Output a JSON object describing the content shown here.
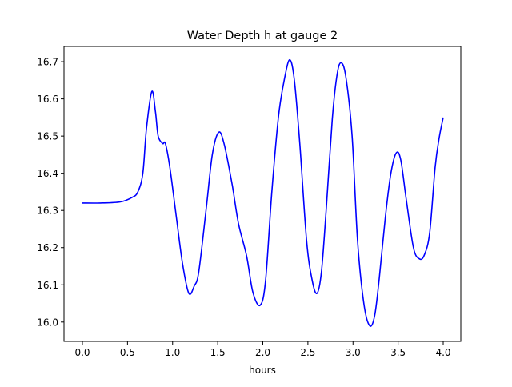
{
  "chart_data": {
    "type": "line",
    "title": "Water Depth h at gauge 2",
    "xlabel": "hours",
    "ylabel": "",
    "xlim": [
      -0.204,
      4.195
    ],
    "ylim": [
      15.948,
      16.741
    ],
    "xticks": [
      0.0,
      0.5,
      1.0,
      1.5,
      2.0,
      2.5,
      3.0,
      3.5,
      4.0
    ],
    "xtick_labels": [
      "0.0",
      "0.5",
      "1.0",
      "1.5",
      "2.0",
      "2.5",
      "3.0",
      "3.5",
      "4.0"
    ],
    "yticks": [
      16.0,
      16.1,
      16.2,
      16.3,
      16.4,
      16.5,
      16.6,
      16.7
    ],
    "ytick_labels": [
      "16.0",
      "16.1",
      "16.2",
      "16.3",
      "16.4",
      "16.5",
      "16.6",
      "16.7"
    ],
    "grid": false,
    "series": [
      {
        "name": "h",
        "color": "#0000ff",
        "x": [
          0,
          0.2,
          0.42,
          0.55,
          0.615,
          0.67,
          0.71,
          0.77,
          0.81,
          0.84,
          0.89,
          0.92,
          0.97,
          1.04,
          1.11,
          1.18,
          1.24,
          1.29,
          1.375,
          1.44,
          1.51,
          1.57,
          1.66,
          1.73,
          1.82,
          1.89,
          1.97,
          2.03,
          2.1,
          2.175,
          2.245,
          2.3,
          2.35,
          2.41,
          2.485,
          2.545,
          2.6,
          2.65,
          2.705,
          2.77,
          2.82,
          2.865,
          2.92,
          2.99,
          3.05,
          3.12,
          3.185,
          3.24,
          3.29,
          3.36,
          3.42,
          3.48,
          3.53,
          3.59,
          3.67,
          3.735,
          3.79,
          3.85,
          3.91,
          3.955,
          4.0
        ],
        "y": [
          16.32,
          16.32,
          16.323,
          16.335,
          16.35,
          16.4,
          16.52,
          16.62,
          16.565,
          16.5,
          16.48,
          16.48,
          16.415,
          16.285,
          16.157,
          16.077,
          16.097,
          16.135,
          16.31,
          16.45,
          16.51,
          16.48,
          16.37,
          16.265,
          16.178,
          16.08,
          16.045,
          16.11,
          16.35,
          16.555,
          16.66,
          16.705,
          16.65,
          16.48,
          16.22,
          16.115,
          16.077,
          16.135,
          16.31,
          16.545,
          16.66,
          16.697,
          16.66,
          16.5,
          16.22,
          16.05,
          15.99,
          16.017,
          16.115,
          16.285,
          16.4,
          16.455,
          16.435,
          16.33,
          16.2,
          16.17,
          16.18,
          16.24,
          16.415,
          16.495,
          16.55
        ]
      }
    ]
  }
}
